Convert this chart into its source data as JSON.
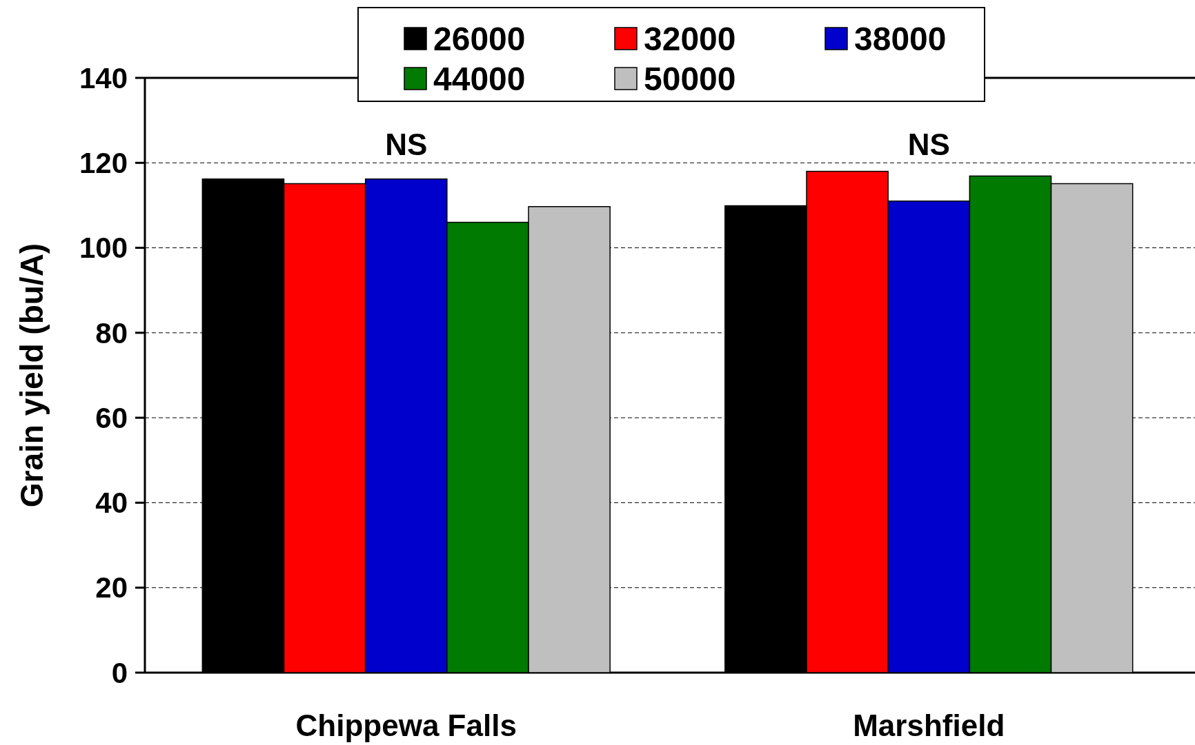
{
  "chart_data": {
    "type": "bar",
    "ylabel": "Grain yield (bu/A)",
    "categories": [
      "Chippewa Falls",
      "Marshfield"
    ],
    "series": [
      {
        "name": "26000",
        "color": "#000000",
        "values": [
          116.2,
          109.9
        ]
      },
      {
        "name": "32000",
        "color": "#ff0000",
        "values": [
          115.1,
          118.0
        ]
      },
      {
        "name": "38000",
        "color": "#0000cc",
        "values": [
          116.2,
          111.0
        ]
      },
      {
        "name": "44000",
        "color": "#007a00",
        "values": [
          106.0,
          116.9
        ]
      },
      {
        "name": "50000",
        "color": "#bfbfbf",
        "values": [
          109.7,
          115.1
        ]
      }
    ],
    "ylim": [
      0,
      140
    ],
    "yticks": [
      0,
      20,
      40,
      60,
      80,
      100,
      120,
      140
    ],
    "grid": "y",
    "legend": "top",
    "annotations": [
      "NS",
      "NS"
    ]
  }
}
